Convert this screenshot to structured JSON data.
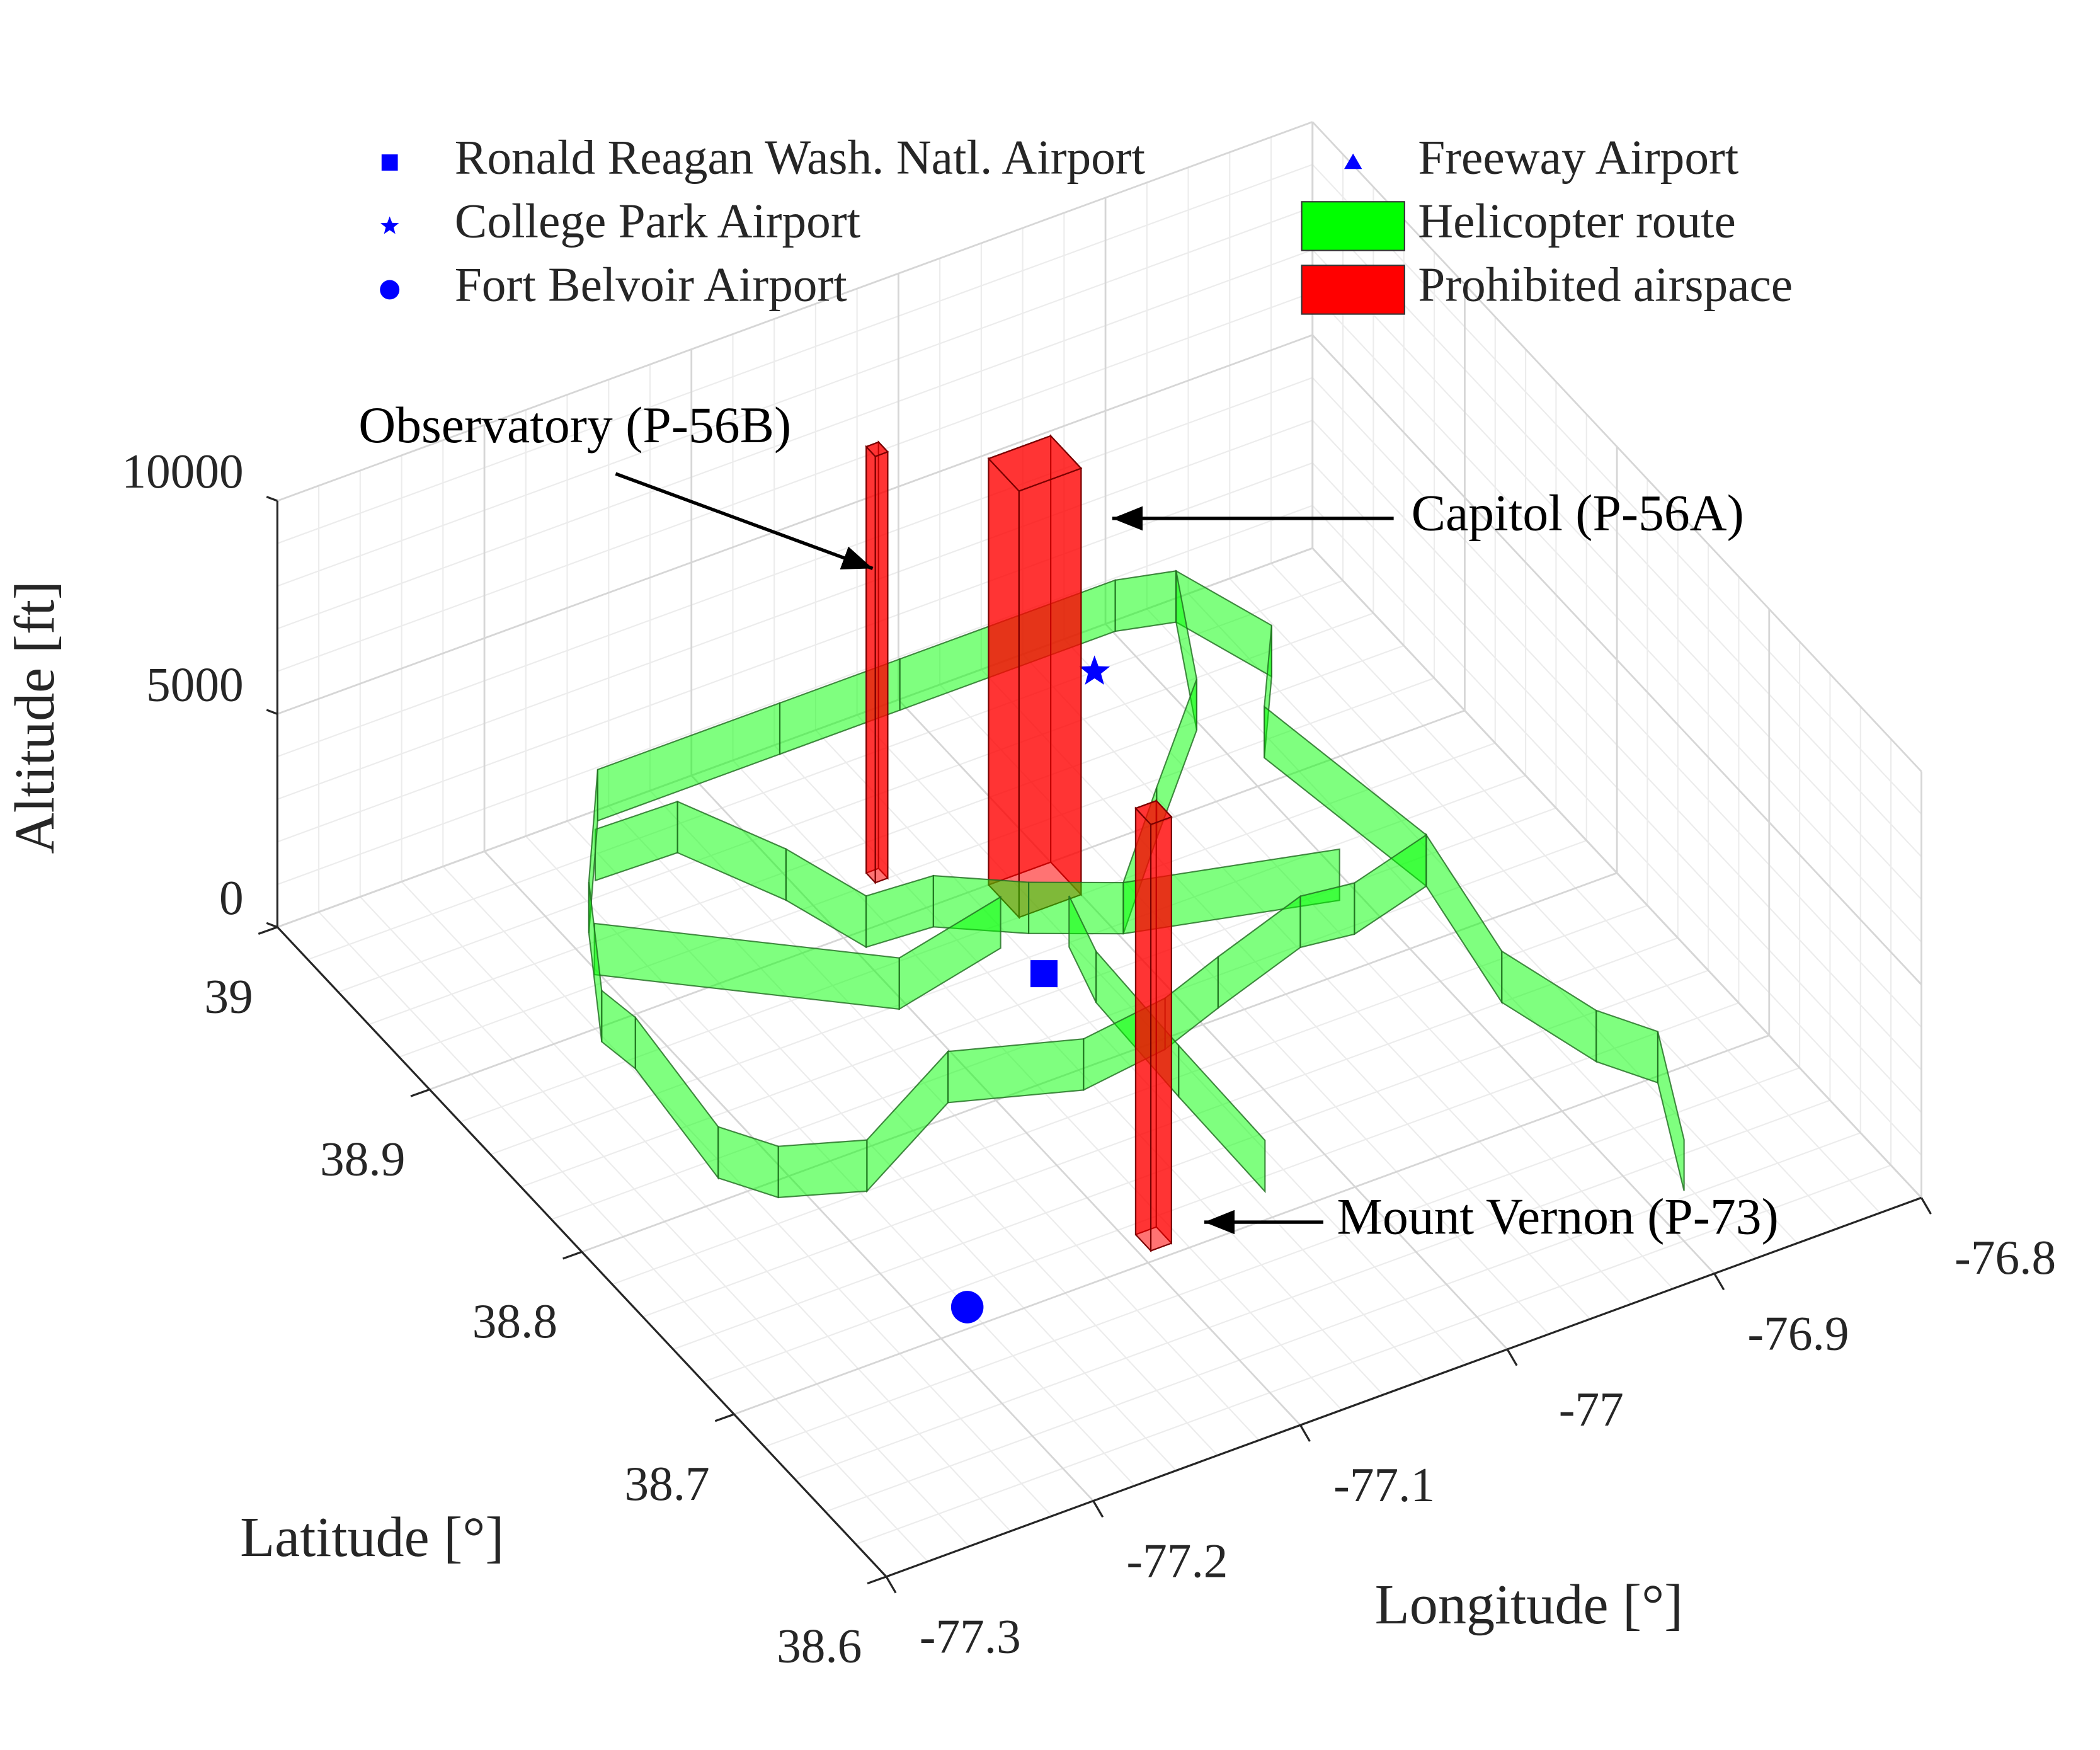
{
  "chart_data": {
    "type": "scatter3d",
    "xlabel": "Longitude [°]",
    "ylabel": "Latitude [°]",
    "zlabel": "Altitude [ft]",
    "xlim": [
      -77.3,
      -76.8
    ],
    "ylim": [
      38.6,
      39
    ],
    "zlim": [
      0,
      10000
    ],
    "xticks": [
      -77.3,
      -77.2,
      -77.1,
      -77,
      -76.9,
      -76.8
    ],
    "yticks": [
      38.6,
      38.7,
      38.8,
      38.9,
      39
    ],
    "zticks": [
      0,
      5000,
      10000
    ],
    "grid": true,
    "legend_location": "north",
    "series": [
      {
        "name": "Ronald Reagan Wash. Natl. Airport",
        "marker": "square",
        "color": "#0000ff",
        "x": [
          -77.04
        ],
        "y": [
          38.85
        ],
        "z": [
          0
        ]
      },
      {
        "name": "College Park Airport",
        "marker": "star",
        "color": "#0000ff",
        "x": [
          -76.92
        ],
        "y": [
          38.98
        ],
        "z": [
          0
        ]
      },
      {
        "name": "Fort Belvoir Airport",
        "marker": "circle",
        "color": "#0000ff",
        "x": [
          -77.18
        ],
        "y": [
          38.71
        ],
        "z": [
          0
        ]
      },
      {
        "name": "Freeway Airport",
        "marker": "triangle",
        "color": "#0000ff",
        "x": [],
        "y": [],
        "z": []
      },
      {
        "name": "Helicopter route",
        "marker": "route",
        "color": "#00ff00",
        "zlim": [
          0,
          1200
        ],
        "routes": [
          {
            "x": [
              -77.222,
              -77.219,
              -77.226,
              -77.211,
              -77.177,
              -77.118,
              -77.065,
              -77.022,
              -76.989,
              -76.939,
              -76.915,
              -76.873,
              -76.888,
              -76.858,
              -76.874,
              -76.899,
              -77.003,
              -77.061,
              -77.149,
              -77.19,
              -77.222
            ],
            "y": [
              38.893,
              38.875,
              38.811,
              38.792,
              38.78,
              38.807,
              38.79,
              38.795,
              38.805,
              38.819,
              38.816,
              38.826,
              38.912,
              38.948,
              38.989,
              38.995,
              38.995,
              38.995,
              38.995,
              38.945,
              38.893
            ]
          },
          {
            "x": [
              -76.873,
              -76.885,
              -76.871,
              -76.856,
              -76.883
            ],
            "y": [
              38.826,
              38.76,
              38.717,
              38.697,
              38.643
            ]
          },
          {
            "x": [
              -77.17,
              -77.131,
              -77.108,
              -77.095,
              -77.064,
              -77.032,
              -76.998,
              -76.909
            ],
            "y": [
              38.968,
              38.967,
              38.927,
              38.892,
              38.89,
              38.871,
              38.855,
              38.834
            ]
          },
          {
            "x": [
              -77.202,
              -77.104,
              -77.047
            ],
            "y": [
              38.925,
              38.858,
              38.869
            ]
          },
          {
            "x": [
              -77.022,
              -77.031,
              -77.033,
              -77.034
            ],
            "y": [
              38.858,
              38.828,
              38.771,
              38.713
            ]
          },
          {
            "x": [
              -76.874,
              -76.903,
              -76.954,
              -76.998
            ],
            "y": [
              38.989,
              38.936,
              38.893,
              38.855
            ]
          }
        ]
      },
      {
        "name": "Prohibited airspace",
        "marker": "box",
        "color": "#ff0000",
        "boxes": [
          {
            "label": "Observatory (P-56B)",
            "xlim": [
              -77.07,
              -77.064
            ],
            "ylim": [
              38.92,
              38.926
            ],
            "zlim": [
              0,
              10000
            ]
          },
          {
            "label": "Capitol (P-56A)",
            "xlim": [
              -77.03,
              -77.0
            ],
            "ylim": [
              38.88,
              38.9
            ],
            "zlim": [
              0,
              10000
            ]
          },
          {
            "label": "Mount Vernon (P-73)",
            "xlim": [
              -77.095,
              -77.085
            ],
            "ylim": [
              38.705,
              38.715
            ],
            "zlim": [
              0,
              10000
            ]
          }
        ]
      }
    ]
  }
}
